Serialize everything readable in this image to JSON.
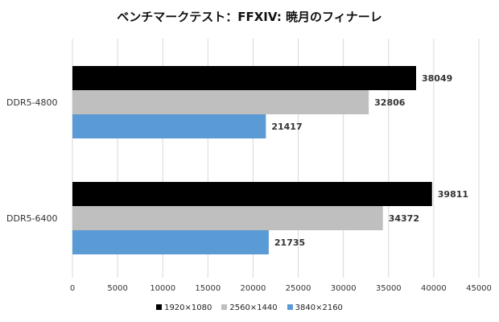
{
  "chart_data": {
    "type": "bar",
    "orientation": "horizontal",
    "title": "ベンチマークテスト：FFXIV: 暁月のフィナーレ",
    "categories": [
      "DDR5-4800",
      "DDR5-6400"
    ],
    "series": [
      {
        "name": "1920×1080",
        "color": "#000000",
        "values": [
          38049,
          39811
        ]
      },
      {
        "name": "2560×1440",
        "color": "#bfbfbf",
        "values": [
          32806,
          34372
        ]
      },
      {
        "name": "3840×2160",
        "color": "#5b9bd5",
        "values": [
          21417,
          21735
        ]
      }
    ],
    "xlim": [
      0,
      45000
    ],
    "xticks": [
      0,
      5000,
      10000,
      15000,
      20000,
      25000,
      30000,
      35000,
      40000,
      45000
    ],
    "grid": true,
    "legend_position": "bottom",
    "data_labels": true
  }
}
